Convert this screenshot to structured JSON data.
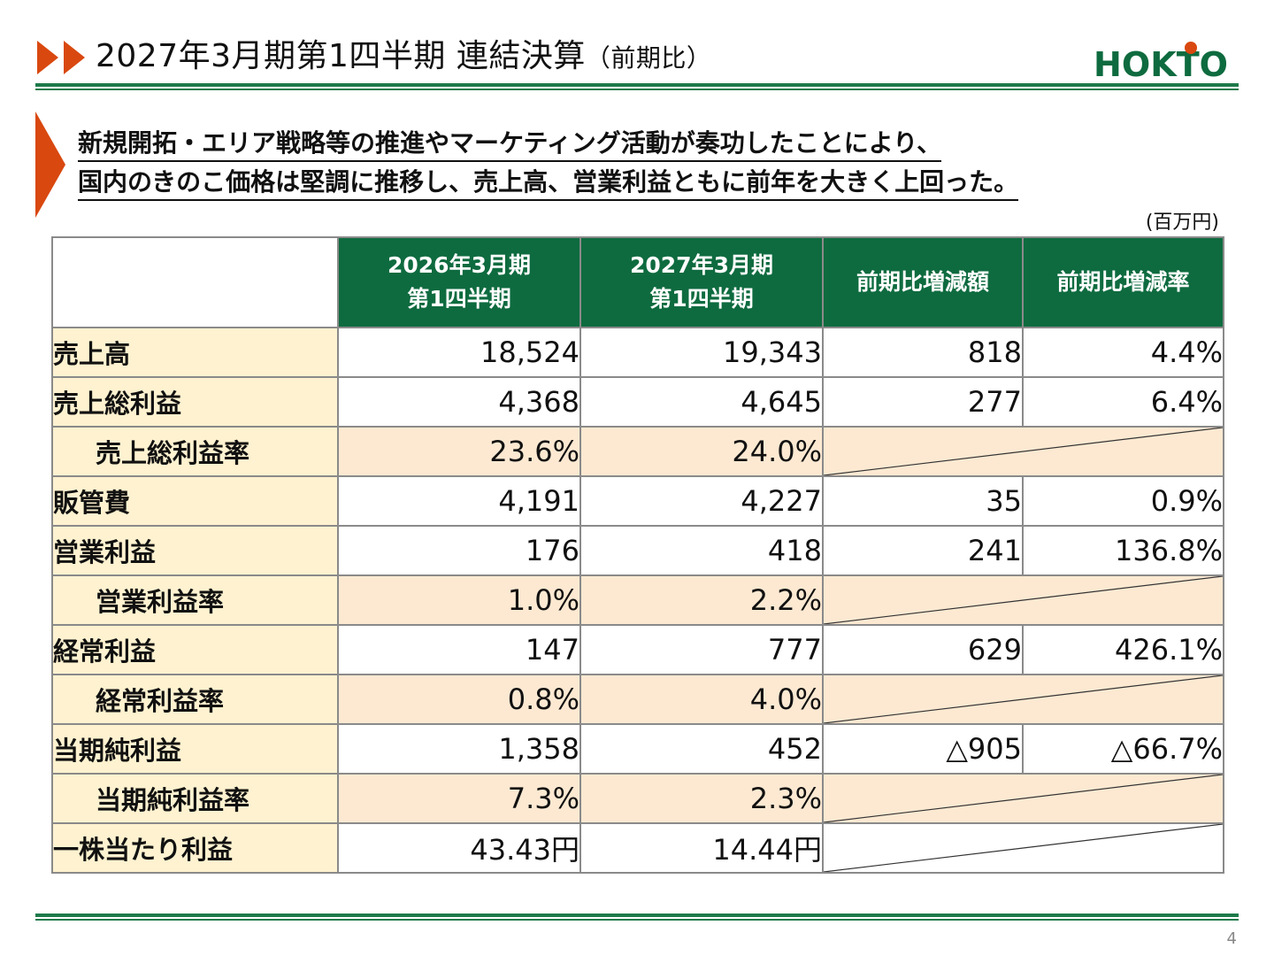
{
  "header": {
    "title": "2027年3月期第1四半期 連結決算",
    "title_suffix": "（前期比）",
    "logo_text": "HOKTO",
    "accent_color": "#d9480f",
    "brand_color": "#0e6b3f"
  },
  "lead": {
    "line1": "新規開拓・エリア戦略等の推進やマーケティング活動が奏功したことにより、",
    "line2": "国内のきのこ価格は堅調に推移し、売上高、営業利益ともに前年を大きく上回った。"
  },
  "unit": "(百万円)",
  "table": {
    "columns": [
      {
        "line1": "2026年3月期",
        "line2": "第1四半期"
      },
      {
        "line1": "2027年3月期",
        "line2": "第1四半期"
      },
      {
        "line1": "前期比増減額",
        "line2": ""
      },
      {
        "line1": "前期比増減率",
        "line2": ""
      }
    ],
    "rows": [
      {
        "label": "売上高",
        "prev": "18,524",
        "curr": "19,343",
        "diff": "818",
        "rate": "4.4%"
      },
      {
        "label": "売上総利益",
        "prev": "4,368",
        "curr": "4,645",
        "diff": "277",
        "rate": "6.4%"
      },
      {
        "label": "売上総利益率",
        "prev": "23.6%",
        "curr": "24.0%"
      },
      {
        "label": "販管費",
        "prev": "4,191",
        "curr": "4,227",
        "diff": "35",
        "rate": "0.9%"
      },
      {
        "label": "営業利益",
        "prev": "176",
        "curr": "418",
        "diff": "241",
        "rate": "136.8%"
      },
      {
        "label": "営業利益率",
        "prev": "1.0%",
        "curr": "2.2%"
      },
      {
        "label": "経常利益",
        "prev": "147",
        "curr": "777",
        "diff": "629",
        "rate": "426.1%"
      },
      {
        "label": "経常利益率",
        "prev": "0.8%",
        "curr": "4.0%"
      },
      {
        "label": "当期純利益",
        "prev": "1,358",
        "curr": "452",
        "diff": "△905",
        "rate": "△66.7%"
      },
      {
        "label": "当期純利益率",
        "prev": "7.3%",
        "curr": "2.3%"
      },
      {
        "label": "一株当たり利益",
        "prev": "43.43円",
        "curr": "14.44円"
      }
    ]
  },
  "page_number": "4"
}
